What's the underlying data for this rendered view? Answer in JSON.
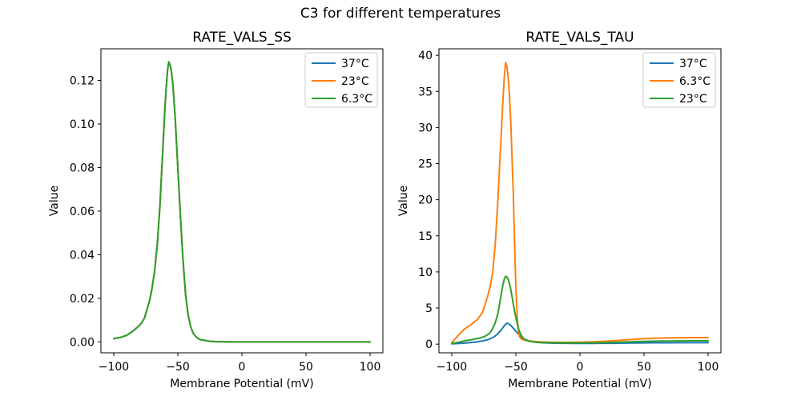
{
  "figure": {
    "title": "C3 for different temperatures",
    "background": "#ffffff"
  },
  "colors": {
    "blue": "#1f77b4",
    "orange": "#ff7f0e",
    "green": "#2ca02c",
    "axis": "#000000",
    "legend_border": "#cccccc"
  },
  "chart_data": [
    {
      "type": "line",
      "title": "RATE_VALS_SS",
      "xlabel": "Membrane Potential (mV)",
      "ylabel": "Value",
      "xlim": [
        -110,
        110
      ],
      "ylim": [
        -0.005,
        0.1345
      ],
      "grid": false,
      "legend_position": "upper right",
      "xticks": [
        -100,
        -50,
        0,
        50,
        100
      ],
      "xtick_labels": [
        "−100",
        "−50",
        "0",
        "50",
        "100"
      ],
      "yticks": [
        0,
        0.02,
        0.04,
        0.06,
        0.08,
        0.1,
        0.12
      ],
      "ytick_labels": [
        "0.00",
        "0.02",
        "0.04",
        "0.06",
        "0.08",
        "0.10",
        "0.12"
      ],
      "x": [
        -100,
        -95,
        -90,
        -85,
        -80,
        -78,
        -76,
        -74,
        -72,
        -70,
        -68,
        -66,
        -64,
        -62,
        -60,
        -59,
        -58,
        -57,
        -56,
        -55,
        -54,
        -53,
        -52,
        -51,
        -50,
        -49,
        -48,
        -47,
        -46,
        -45,
        -44,
        -42,
        -40,
        -38,
        -36,
        -34,
        -32,
        -30,
        -25,
        -20,
        -15,
        -10,
        -5,
        0,
        5,
        10,
        15,
        20,
        25,
        30,
        35,
        40,
        45,
        50,
        55,
        60,
        65,
        70,
        75,
        80,
        85,
        90,
        95,
        100
      ],
      "series": [
        {
          "name": "37°C",
          "color": "#1f77b4",
          "values": [
            0.0015,
            0.002,
            0.003,
            0.005,
            0.0075,
            0.009,
            0.011,
            0.015,
            0.019,
            0.025,
            0.033,
            0.045,
            0.062,
            0.085,
            0.108,
            0.117,
            0.125,
            0.1285,
            0.127,
            0.124,
            0.119,
            0.111,
            0.102,
            0.091,
            0.08,
            0.069,
            0.058,
            0.048,
            0.038,
            0.03,
            0.022,
            0.0125,
            0.007,
            0.004,
            0.0025,
            0.0015,
            0.001,
            0.0008,
            0.0003,
            0.0001,
            0.0001,
            0,
            0,
            0,
            0,
            0,
            0,
            0,
            0,
            0,
            0,
            0,
            0,
            0,
            0,
            0,
            0,
            0,
            0,
            0,
            0,
            0,
            0,
            0
          ]
        },
        {
          "name": "23°C",
          "color": "#ff7f0e",
          "values": [
            0.0015,
            0.002,
            0.003,
            0.005,
            0.0075,
            0.009,
            0.011,
            0.015,
            0.019,
            0.025,
            0.033,
            0.045,
            0.062,
            0.085,
            0.108,
            0.117,
            0.125,
            0.1285,
            0.127,
            0.124,
            0.119,
            0.111,
            0.102,
            0.091,
            0.08,
            0.069,
            0.058,
            0.048,
            0.038,
            0.03,
            0.022,
            0.0125,
            0.007,
            0.004,
            0.0025,
            0.0015,
            0.001,
            0.0008,
            0.0003,
            0.0001,
            0.0001,
            0,
            0,
            0,
            0,
            0,
            0,
            0,
            0,
            0,
            0,
            0,
            0,
            0,
            0,
            0,
            0,
            0,
            0,
            0,
            0,
            0,
            0,
            0
          ]
        },
        {
          "name": "6.3°C",
          "color": "#2ca02c",
          "values": [
            0.0015,
            0.002,
            0.003,
            0.005,
            0.0075,
            0.009,
            0.011,
            0.015,
            0.019,
            0.025,
            0.033,
            0.045,
            0.062,
            0.085,
            0.108,
            0.117,
            0.125,
            0.1285,
            0.127,
            0.124,
            0.119,
            0.111,
            0.102,
            0.091,
            0.08,
            0.069,
            0.058,
            0.048,
            0.038,
            0.03,
            0.022,
            0.0125,
            0.007,
            0.004,
            0.0025,
            0.0015,
            0.001,
            0.0008,
            0.0003,
            0.0001,
            0.0001,
            0,
            0,
            0,
            0,
            0,
            0,
            0,
            0,
            0,
            0,
            0,
            0,
            0,
            0,
            0,
            0,
            0,
            0,
            0,
            0,
            0,
            0,
            0
          ]
        }
      ]
    },
    {
      "type": "line",
      "title": "RATE_VALS_TAU",
      "xlabel": "Membrane Potential (mV)",
      "ylabel": "Value",
      "xlim": [
        -110,
        110
      ],
      "ylim": [
        -1.2,
        40.9
      ],
      "grid": false,
      "legend_position": "upper right",
      "xticks": [
        -100,
        -50,
        0,
        50,
        100
      ],
      "xtick_labels": [
        "−100",
        "−50",
        "0",
        "50",
        "100"
      ],
      "yticks": [
        0,
        5,
        10,
        15,
        20,
        25,
        30,
        35,
        40
      ],
      "ytick_labels": [
        "0",
        "5",
        "10",
        "15",
        "20",
        "25",
        "30",
        "35",
        "40"
      ],
      "x": [
        -100,
        -95,
        -90,
        -85,
        -80,
        -78,
        -76,
        -74,
        -72,
        -70,
        -68,
        -66,
        -64,
        -62,
        -60,
        -59,
        -58,
        -57,
        -56,
        -55,
        -54,
        -53,
        -52,
        -51,
        -50,
        -49,
        -48,
        -47,
        -46,
        -45,
        -44,
        -42,
        -40,
        -38,
        -36,
        -34,
        -32,
        -30,
        -25,
        -20,
        -15,
        -10,
        -5,
        0,
        5,
        10,
        15,
        20,
        25,
        30,
        35,
        40,
        45,
        50,
        55,
        60,
        65,
        70,
        75,
        80,
        85,
        90,
        95,
        100
      ],
      "series": [
        {
          "name": "37°C",
          "color": "#1f77b4",
          "values": [
            0.05,
            0.09,
            0.14,
            0.22,
            0.32,
            0.38,
            0.44,
            0.52,
            0.62,
            0.75,
            0.92,
            1.15,
            1.45,
            1.85,
            2.3,
            2.55,
            2.75,
            2.9,
            2.85,
            2.75,
            2.6,
            2.4,
            2.2,
            2.0,
            1.8,
            1.6,
            1.4,
            1.2,
            1.05,
            0.9,
            0.78,
            0.6,
            0.47,
            0.38,
            0.31,
            0.27,
            0.23,
            0.2,
            0.16,
            0.13,
            0.12,
            0.11,
            0.1,
            0.1,
            0.1,
            0.1,
            0.11,
            0.11,
            0.12,
            0.13,
            0.14,
            0.15,
            0.16,
            0.17,
            0.18,
            0.18,
            0.19,
            0.19,
            0.2,
            0.2,
            0.2,
            0.2,
            0.2,
            0.2
          ]
        },
        {
          "name": "6.3°C",
          "color": "#ff7f0e",
          "values": [
            0.2,
            1.2,
            2.1,
            2.7,
            3.4,
            3.9,
            4.4,
            5.5,
            6.6,
            8.0,
            10,
            14,
            20,
            27,
            34,
            37,
            39,
            38.5,
            37,
            34.5,
            31,
            26,
            21,
            14,
            8,
            4,
            1.8,
            1.0,
            0.75,
            0.65,
            0.6,
            0.52,
            0.46,
            0.42,
            0.38,
            0.35,
            0.33,
            0.31,
            0.28,
            0.26,
            0.25,
            0.25,
            0.26,
            0.28,
            0.3,
            0.33,
            0.37,
            0.41,
            0.46,
            0.52,
            0.58,
            0.64,
            0.7,
            0.75,
            0.79,
            0.82,
            0.85,
            0.87,
            0.88,
            0.89,
            0.9,
            0.9,
            0.9,
            0.9
          ]
        },
        {
          "name": "23°C",
          "color": "#2ca02c",
          "values": [
            0.1,
            0.25,
            0.45,
            0.6,
            0.78,
            0.85,
            0.95,
            1.1,
            1.3,
            1.6,
            2.2,
            3.0,
            4.2,
            6.3,
            8.3,
            9.0,
            9.4,
            9.3,
            9.0,
            8.4,
            7.6,
            6.6,
            5.6,
            4.6,
            3.7,
            2.9,
            2.2,
            1.7,
            1.3,
            1.0,
            0.8,
            0.55,
            0.42,
            0.35,
            0.3,
            0.27,
            0.25,
            0.23,
            0.2,
            0.18,
            0.17,
            0.17,
            0.17,
            0.17,
            0.18,
            0.19,
            0.2,
            0.22,
            0.24,
            0.27,
            0.3,
            0.33,
            0.36,
            0.38,
            0.4,
            0.42,
            0.43,
            0.44,
            0.45,
            0.45,
            0.46,
            0.46,
            0.46,
            0.46
          ]
        }
      ]
    }
  ]
}
